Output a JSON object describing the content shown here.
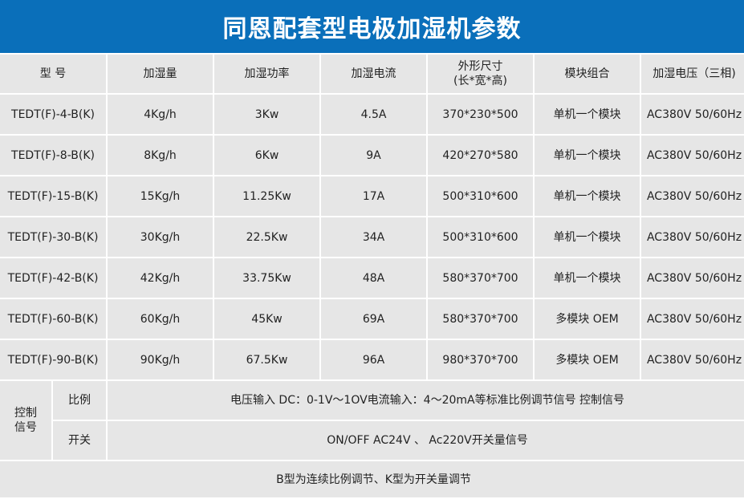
{
  "title": "同恩配套型电极加湿机参数",
  "headers": [
    "型 号",
    "加湿量",
    "加湿功率",
    "加湿电流",
    "外形尺寸\n(长*宽*高)",
    "模块组合",
    "加湿电压（三相)"
  ],
  "header_size_line1": "外形尺寸",
  "header_size_line2": "(长*宽*高)",
  "rows": [
    [
      "TEDT(F)-4-B(K)",
      "4Kg/h",
      "3Kw",
      "4.5A",
      "370*230*500",
      "单机一个模块",
      "AC380V 50/60Hz"
    ],
    [
      "TEDT(F)-8-B(K)",
      "8Kg/h",
      "6Kw",
      "9A",
      "420*270*580",
      "单机一个模块",
      "AC380V 50/60Hz"
    ],
    [
      "TEDT(F)-15-B(K)",
      "15Kg/h",
      "11.25Kw",
      "17A",
      "500*310*600",
      "单机一个模块",
      "AC380V 50/60Hz"
    ],
    [
      "TEDT(F)-30-B(K)",
      "30Kg/h",
      "22.5Kw",
      "34A",
      "500*310*600",
      "单机一个模块",
      "AC380V 50/60Hz"
    ],
    [
      "TEDT(F)-42-B(K)",
      "42Kg/h",
      "33.75Kw",
      "48A",
      "580*370*700",
      "单机一个模块",
      "AC380V 50/60Hz"
    ],
    [
      "TEDT(F)-60-B(K)",
      "60Kg/h",
      "45Kw",
      "69A",
      "580*370*700",
      "多模块 OEM",
      "AC380V 50/60Hz"
    ],
    [
      "TEDT(F)-90-B(K)",
      "90Kg/h",
      "67.5Kw",
      "96A",
      "980*370*700",
      "多模块 OEM",
      "AC380V 50/60Hz"
    ]
  ],
  "control": {
    "label_line1": "控制",
    "label_line2": "信号",
    "proportional_label": "比例",
    "proportional_text": "电压输入 DC：0-1V～1OV电流输入：4～20mA等标准比例调节信号 控制信号",
    "switch_label": "开关",
    "switch_text": "ON/OFF AC24V 、 Ac220V开关量信号"
  },
  "footer": "B型为连续比例调节、K型为开关量调节",
  "colors": {
    "title_bg": "#0a6fba",
    "cell_bg": "#e6e6e6"
  }
}
